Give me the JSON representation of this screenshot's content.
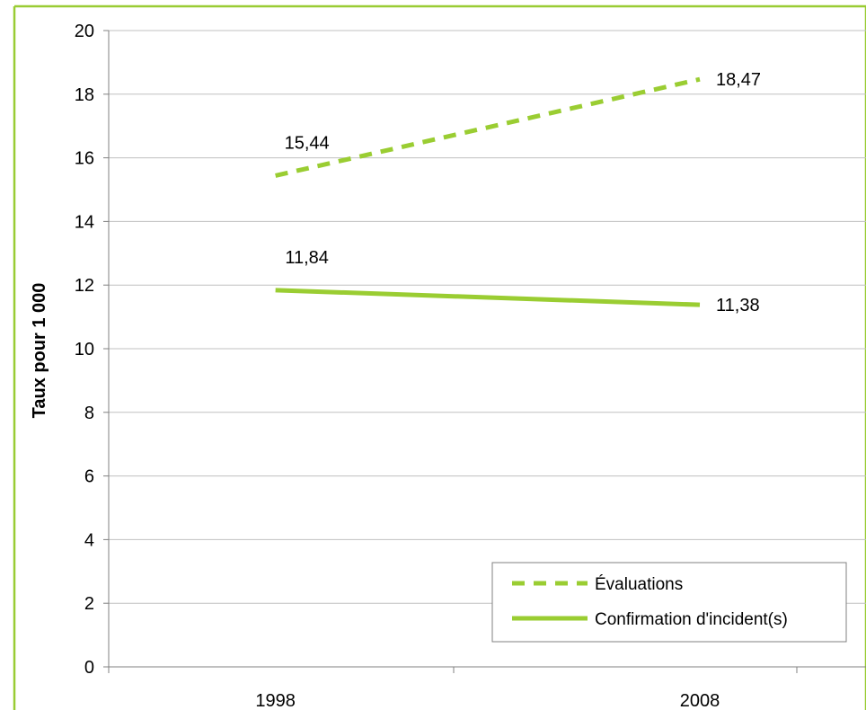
{
  "chart_data": {
    "type": "line",
    "title": "",
    "xlabel": "",
    "ylabel": "Taux pour 1 000",
    "categories": [
      "1998",
      "2008"
    ],
    "ylim": [
      0,
      20
    ],
    "y_ticks": [
      "0",
      "2",
      "4",
      "6",
      "8",
      "10",
      "12",
      "14",
      "16",
      "18",
      "20"
    ],
    "grid": true,
    "legend_position": "bottom-right",
    "series": [
      {
        "name": "Évaluations",
        "values": [
          15.44,
          18.47
        ],
        "labels": [
          "15,44",
          "18,47"
        ],
        "style": "dashed",
        "color": "#9ACD32"
      },
      {
        "name": "Confirmation d'incident(s)",
        "values": [
          11.84,
          11.38
        ],
        "labels": [
          "11,84",
          "11,38"
        ],
        "style": "solid",
        "color": "#9ACD32"
      }
    ]
  },
  "colors": {
    "frame": "#99CC33",
    "grid": "#C0C0C0",
    "axis": "#808080"
  }
}
